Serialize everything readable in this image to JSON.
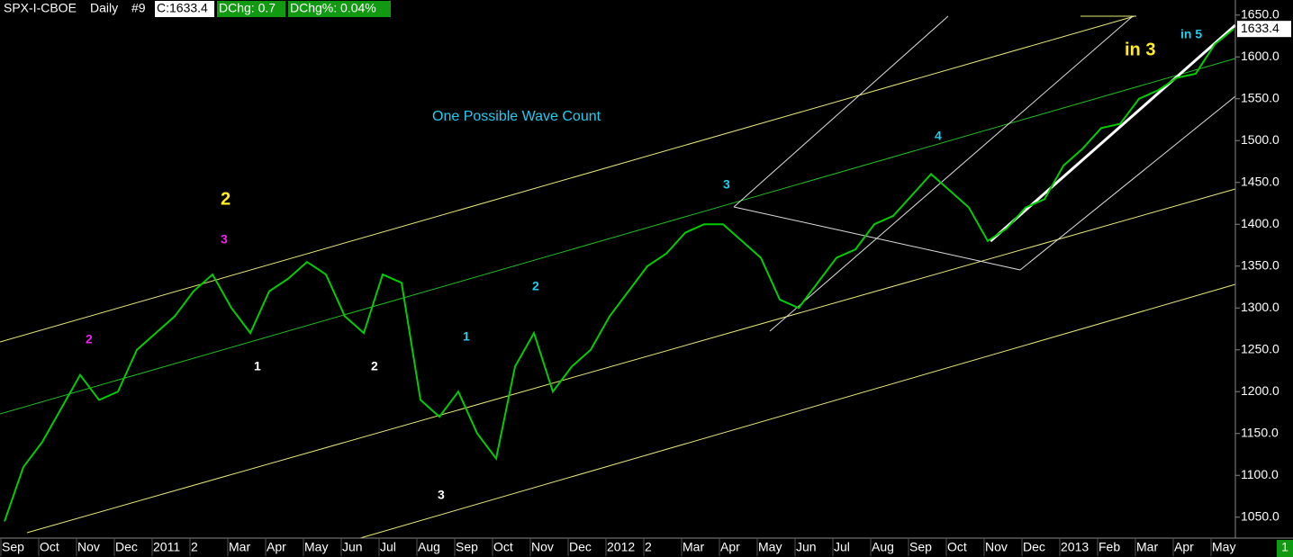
{
  "header": {
    "symbol": "SPX-I-CBOE",
    "period": "Daily",
    "tag": "#9",
    "close": "C:1633.4",
    "change": "DChg: 0.7",
    "change_pct": "DChg%: 0.04%"
  },
  "chart_data": {
    "type": "line",
    "color": "#00cc00",
    "categories": [
      "Sep",
      null,
      "Oct",
      null,
      "Nov",
      null,
      "Dec",
      null,
      "2011",
      null,
      "2",
      null,
      "Mar",
      null,
      "Apr",
      null,
      "May",
      null,
      "Jun",
      null,
      "Jul",
      null,
      "Aug",
      null,
      "Sep",
      null,
      "Oct",
      null,
      "Nov",
      null,
      "Dec",
      null,
      "2012",
      null,
      "2",
      null,
      "Mar",
      null,
      "Apr",
      null,
      "May",
      null,
      "Jun",
      null,
      "Jul",
      null,
      "Aug",
      null,
      "Sep",
      null,
      "Oct",
      null,
      "Nov",
      null,
      "Dec",
      null,
      "2013",
      null,
      "Feb",
      null,
      "Mar",
      null,
      "Apr",
      null,
      "May",
      null
    ],
    "values": [
      1045,
      1110,
      1140,
      1180,
      1220,
      1190,
      1200,
      1250,
      1270,
      1290,
      1320,
      1340,
      1300,
      1270,
      1320,
      1335,
      1355,
      1340,
      1290,
      1270,
      1340,
      1330,
      1190,
      1170,
      1200,
      1150,
      1120,
      1230,
      1270,
      1200,
      1230,
      1250,
      1290,
      1320,
      1350,
      1365,
      1390,
      1400,
      1400,
      1380,
      1360,
      1310,
      1300,
      1330,
      1360,
      1370,
      1400,
      1410,
      1435,
      1460,
      1440,
      1420,
      1380,
      1395,
      1420,
      1430,
      1470,
      1490,
      1515,
      1520,
      1550,
      1560,
      1575,
      1580,
      1615,
      1633.4
    ],
    "ylim": [
      1025,
      1668
    ],
    "yticks": [
      {
        "value": 1050,
        "label": "1050.0"
      },
      {
        "value": 1100,
        "label": "1100.0"
      },
      {
        "value": 1150,
        "label": "1150.0"
      },
      {
        "value": 1200,
        "label": "1200.0"
      },
      {
        "value": 1250,
        "label": "1250.0"
      },
      {
        "value": 1300,
        "label": "1300.0"
      },
      {
        "value": 1350,
        "label": "1350.0"
      },
      {
        "value": 1400,
        "label": "1400.0"
      },
      {
        "value": 1450,
        "label": "1450.0"
      },
      {
        "value": 1500,
        "label": "1500.0"
      },
      {
        "value": 1550,
        "label": "1550.0"
      },
      {
        "value": 1600,
        "label": "1600.0"
      },
      {
        "value": 1650,
        "label": "1650.0"
      }
    ],
    "annotations": [
      "One Possible Wave Count",
      "2",
      "3",
      "2",
      "1",
      "2",
      "3",
      "1",
      "2",
      "3",
      "4",
      "in 3",
      "in 5"
    ],
    "corner_badge": "1"
  }
}
